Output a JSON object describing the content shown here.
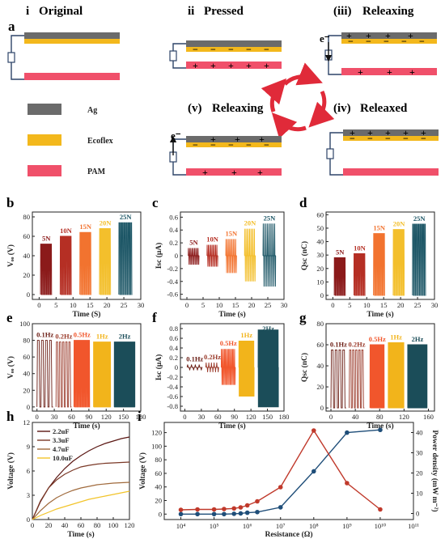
{
  "colors": {
    "ag": "#6b6b6b",
    "ecoflex": "#f3b81c",
    "pam": "#f0506a",
    "circuit": "#2d4468",
    "cycle_arrow": "#e02a39",
    "force_series": [
      "#8b1a1a",
      "#b52f24",
      "#f2732f",
      "#f3bf2c",
      "#1b5565"
    ],
    "freq_series": [
      "#6b1d14",
      "#9a3a2a",
      "#f1562c",
      "#f2b41b",
      "#1b4d59"
    ],
    "cap_series": [
      "#5a1612",
      "#7a3826",
      "#a06a3c",
      "#f2c42a"
    ],
    "voltage_line": "#1f4e79",
    "power_line": "#c0392b"
  },
  "schematic": {
    "panel_letter": "a",
    "stages": [
      {
        "roman": "i",
        "label": "Original"
      },
      {
        "roman": "ii",
        "label": "Pressed"
      },
      {
        "roman": "(iii)",
        "label": "Releaxing"
      },
      {
        "roman": "(iv)",
        "label": "Releaxed"
      },
      {
        "roman": "(v)",
        "label": "Releaxing"
      }
    ],
    "electron": "e⁻",
    "legend": [
      {
        "label": "Ag",
        "color": "#6b6b6b"
      },
      {
        "label": "Ecoflex",
        "color": "#f3b81c"
      },
      {
        "label": "PAM",
        "color": "#f0506a"
      }
    ]
  },
  "chart_data": [
    {
      "id": "b",
      "type": "line",
      "title": "",
      "xlabel": "Time (S)",
      "ylabel": "Vₒₒ (V)",
      "xlim": [
        -2,
        30
      ],
      "ylim": [
        -5,
        85
      ],
      "xticks": [
        0,
        5,
        10,
        15,
        20,
        25,
        30
      ],
      "yticks": [
        0,
        20,
        40,
        60,
        80
      ],
      "series": [
        {
          "name": "5N",
          "x_start": 0.4,
          "x_end": 3.8,
          "peak": 52,
          "cycles": 9
        },
        {
          "name": "10N",
          "x_start": 6.2,
          "x_end": 9.6,
          "peak": 60,
          "cycles": 9
        },
        {
          "name": "15N",
          "x_start": 12.0,
          "x_end": 15.4,
          "peak": 64,
          "cycles": 9
        },
        {
          "name": "20N",
          "x_start": 17.8,
          "x_end": 21.2,
          "peak": 68,
          "cycles": 9
        },
        {
          "name": "25N",
          "x_start": 23.5,
          "x_end": 27.5,
          "peak": 74,
          "cycles": 9
        }
      ]
    },
    {
      "id": "c",
      "type": "line",
      "title": "",
      "xlabel": "Time (s)",
      "ylabel": "Isc (μA)",
      "xlim": [
        -2,
        30
      ],
      "ylim": [
        -0.68,
        0.68
      ],
      "xticks": [
        0,
        5,
        10,
        15,
        20,
        25,
        30
      ],
      "yticks": [
        -0.6,
        -0.4,
        -0.2,
        0.0,
        0.2,
        0.4,
        0.6
      ],
      "series": [
        {
          "name": "5N",
          "x_start": 0.4,
          "x_end": 3.8,
          "peak": 0.12,
          "trough": -0.14,
          "cycles": 9
        },
        {
          "name": "10N",
          "x_start": 6.2,
          "x_end": 9.6,
          "peak": 0.17,
          "trough": -0.17,
          "cycles": 9
        },
        {
          "name": "15N",
          "x_start": 12.0,
          "x_end": 15.4,
          "peak": 0.26,
          "trough": -0.27,
          "cycles": 9
        },
        {
          "name": "20N",
          "x_start": 17.8,
          "x_end": 21.2,
          "peak": 0.42,
          "trough": -0.4,
          "cycles": 9
        },
        {
          "name": "25N",
          "x_start": 23.5,
          "x_end": 27.5,
          "peak": 0.5,
          "trough": -0.48,
          "cycles": 9
        }
      ]
    },
    {
      "id": "d",
      "type": "line",
      "title": "",
      "xlabel": "Time (s)",
      "ylabel": "Qsc (nC)",
      "xlim": [
        -2,
        30
      ],
      "ylim": [
        -3,
        62
      ],
      "xticks": [
        0,
        5,
        10,
        15,
        20,
        25,
        30
      ],
      "yticks": [
        0,
        10,
        20,
        30,
        40,
        50,
        60
      ],
      "series": [
        {
          "name": "5N",
          "x_start": 0.4,
          "x_end": 3.8,
          "peak": 28,
          "cycles": 9
        },
        {
          "name": "10N",
          "x_start": 6.2,
          "x_end": 9.6,
          "peak": 31,
          "cycles": 9
        },
        {
          "name": "15N",
          "x_start": 12.0,
          "x_end": 15.4,
          "peak": 46,
          "cycles": 9
        },
        {
          "name": "20N",
          "x_start": 17.8,
          "x_end": 21.2,
          "peak": 49,
          "cycles": 9
        },
        {
          "name": "25N",
          "x_start": 23.5,
          "x_end": 27.5,
          "peak": 53,
          "cycles": 9
        }
      ]
    },
    {
      "id": "e",
      "type": "line",
      "title": "",
      "xlabel": "Time (s)",
      "ylabel": "Vₒₒ (V)",
      "xlim": [
        -8,
        180
      ],
      "ylim": [
        -5,
        100
      ],
      "xticks": [
        0,
        30,
        60,
        90,
        120,
        150,
        180
      ],
      "yticks": [
        0,
        20,
        40,
        60,
        80,
        100
      ],
      "series": [
        {
          "name": "0.1Hz",
          "x_start": 0,
          "x_end": 28,
          "peak": 80,
          "cycles": 4
        },
        {
          "name": "0.2Hz",
          "x_start": 33,
          "x_end": 60,
          "peak": 78,
          "cycles": 5
        },
        {
          "name": "0.5Hz",
          "x_start": 64,
          "x_end": 92,
          "peak": 80,
          "cycles": 14
        },
        {
          "name": "1Hz",
          "x_start": 98,
          "x_end": 128,
          "peak": 78,
          "cycles": 30
        },
        {
          "name": "2Hz",
          "x_start": 134,
          "x_end": 170,
          "peak": 78,
          "cycles": 60
        }
      ]
    },
    {
      "id": "f",
      "type": "line",
      "title": "",
      "xlabel": "Time (s)",
      "ylabel": "Isc (μA)",
      "xlim": [
        -8,
        180
      ],
      "ylim": [
        -0.9,
        0.9
      ],
      "xticks": [
        0,
        30,
        60,
        90,
        120,
        150,
        180
      ],
      "yticks": [
        -0.8,
        -0.6,
        -0.4,
        -0.2,
        0.0,
        0.2,
        0.4,
        0.6,
        0.8
      ],
      "series": [
        {
          "name": "0.1Hz",
          "x_start": 4,
          "x_end": 32,
          "peak": 0.06,
          "trough": -0.06,
          "cycles": 4
        },
        {
          "name": "0.2Hz",
          "x_start": 38,
          "x_end": 62,
          "peak": 0.1,
          "trough": -0.1,
          "cycles": 5
        },
        {
          "name": "0.5Hz",
          "x_start": 66,
          "x_end": 92,
          "peak": 0.38,
          "trough": -0.36,
          "cycles": 14
        },
        {
          "name": "1Hz",
          "x_start": 98,
          "x_end": 126,
          "peak": 0.55,
          "trough": -0.6,
          "cycles": 30
        },
        {
          "name": "2Hz",
          "x_start": 133,
          "x_end": 170,
          "peak": 0.78,
          "trough": -0.82,
          "cycles": 60
        }
      ]
    },
    {
      "id": "g",
      "type": "line",
      "title": "",
      "xlabel": "Time (s)",
      "ylabel": "Qsc (nC)",
      "xlim": [
        -8,
        170
      ],
      "ylim": [
        -3,
        80
      ],
      "xticks": [
        0,
        40,
        80,
        120,
        160
      ],
      "yticks": [
        0,
        20,
        40,
        60,
        80
      ],
      "series": [
        {
          "name": "0.1Hz",
          "x_start": 0,
          "x_end": 25,
          "peak": 55,
          "cycles": 4
        },
        {
          "name": "0.2Hz",
          "x_start": 30,
          "x_end": 55,
          "peak": 55,
          "cycles": 5
        },
        {
          "name": "0.5Hz",
          "x_start": 64,
          "x_end": 88,
          "peak": 60,
          "cycles": 14
        },
        {
          "name": "1Hz",
          "x_start": 94,
          "x_end": 120,
          "peak": 62,
          "cycles": 30
        },
        {
          "name": "2Hz",
          "x_start": 126,
          "x_end": 158,
          "peak": 60,
          "cycles": 60
        }
      ]
    },
    {
      "id": "h",
      "type": "line",
      "title": "",
      "xlabel": "Time (s)",
      "ylabel": "Voltage (V)",
      "xlim": [
        0,
        120
      ],
      "ylim": [
        0,
        12
      ],
      "xticks": [
        0,
        20,
        40,
        60,
        80,
        100,
        120
      ],
      "yticks": [
        0,
        3,
        6,
        9,
        12
      ],
      "legend": "top-left",
      "series": [
        {
          "name": "2.2uF",
          "x": [
            0,
            10,
            20,
            30,
            40,
            50,
            60,
            70,
            80,
            90,
            100,
            110,
            120
          ],
          "y": [
            0,
            2.2,
            3.9,
            5.2,
            6.3,
            7.2,
            7.9,
            8.5,
            9.0,
            9.4,
            9.7,
            10.0,
            10.2
          ]
        },
        {
          "name": "3.3uF",
          "x": [
            0,
            10,
            20,
            30,
            40,
            50,
            60,
            70,
            80,
            90,
            100,
            110,
            120
          ],
          "y": [
            0,
            2.3,
            3.9,
            4.9,
            5.6,
            6.1,
            6.5,
            6.7,
            6.85,
            6.95,
            7.0,
            7.05,
            7.1
          ]
        },
        {
          "name": "4.7uF",
          "x": [
            0,
            10,
            20,
            30,
            40,
            50,
            60,
            70,
            80,
            90,
            100,
            110,
            120
          ],
          "y": [
            0,
            1.1,
            2.0,
            2.7,
            3.2,
            3.6,
            3.9,
            4.1,
            4.3,
            4.4,
            4.5,
            4.55,
            4.6
          ]
        },
        {
          "name": "10.0uF",
          "x": [
            0,
            10,
            20,
            30,
            40,
            50,
            60,
            70,
            80,
            90,
            100,
            110,
            120
          ],
          "y": [
            0,
            0.5,
            0.9,
            1.3,
            1.6,
            1.9,
            2.2,
            2.5,
            2.7,
            2.9,
            3.1,
            3.3,
            3.5
          ]
        }
      ]
    },
    {
      "id": "i",
      "type": "line",
      "title": "",
      "xlabel": "Resistance (Ω)",
      "ylabel": "Voltage (V)",
      "ylabel_right": "Power density (mW m⁻²)",
      "xscale": "log",
      "xlim": [
        3.5,
        11
      ],
      "xticks": [
        "10⁴",
        "10⁵",
        "10⁶",
        "10⁷",
        "10⁸",
        "10⁹",
        "10¹⁰",
        "10¹¹"
      ],
      "ylim": [
        -8,
        135
      ],
      "ylim_right": [
        -3,
        45
      ],
      "yticks": [
        0,
        20,
        40,
        60,
        80,
        100,
        120
      ],
      "yticks_right": [
        0,
        10,
        20,
        30,
        40
      ],
      "series": [
        {
          "name": "Voltage",
          "axis": "left",
          "x": [
            4,
            4.5,
            5,
            5.3,
            5.6,
            5.8,
            6,
            6.3,
            7,
            8,
            9,
            10
          ],
          "y": [
            0,
            0,
            0,
            0,
            0.5,
            1,
            2,
            3,
            10,
            63,
            120,
            124
          ]
        },
        {
          "name": "Power density",
          "axis": "right",
          "x": [
            4,
            4.5,
            5,
            5.3,
            5.6,
            5.8,
            6,
            6.3,
            7,
            8,
            9,
            10
          ],
          "y": [
            1.8,
            2,
            2,
            2.2,
            2.5,
            3,
            4,
            6,
            13,
            41,
            15,
            2
          ]
        }
      ]
    }
  ]
}
